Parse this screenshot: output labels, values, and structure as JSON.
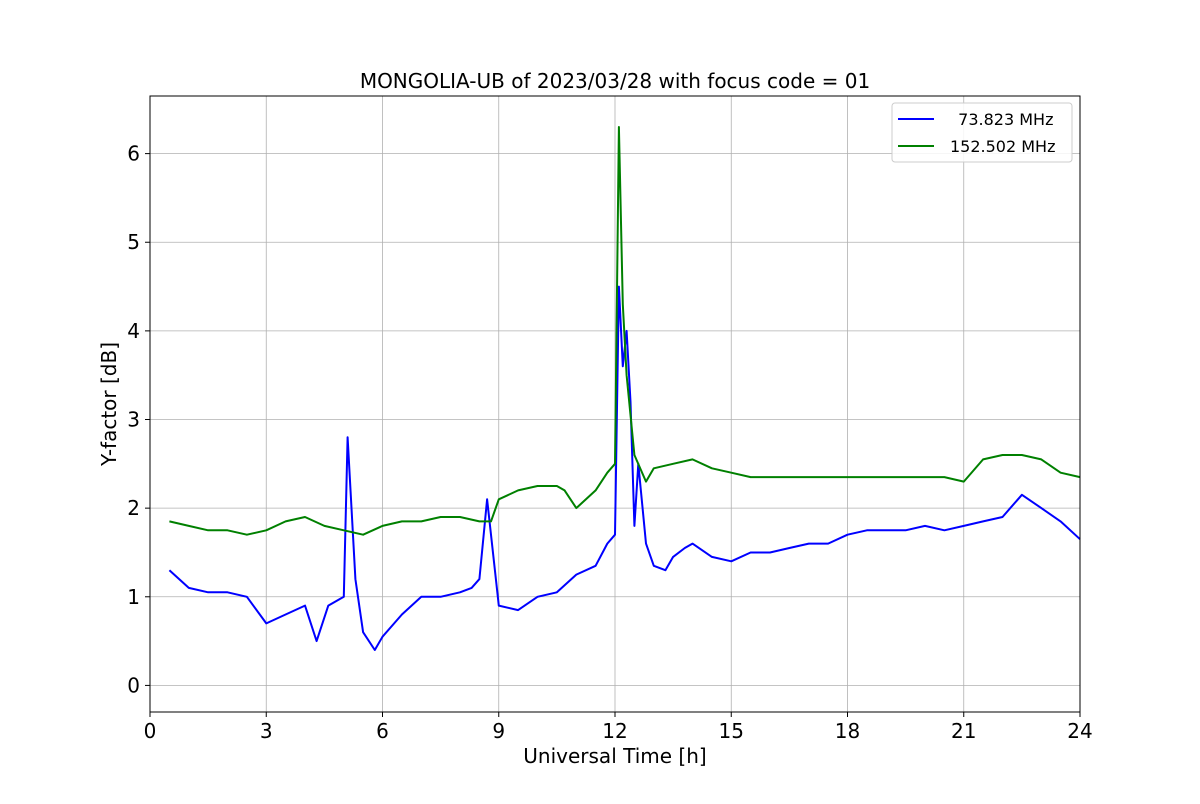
{
  "chart_data": {
    "type": "line",
    "title": "MONGOLIA-UB of 2023/03/28 with focus code = 01",
    "xlabel": "Universal Time [h]",
    "ylabel": "Y-factor [dB]",
    "xlim": [
      0,
      24
    ],
    "ylim": [
      -0.3,
      6.65
    ],
    "xticks": [
      0,
      3,
      6,
      9,
      12,
      15,
      18,
      21,
      24
    ],
    "yticks": [
      0,
      1,
      2,
      3,
      4,
      5,
      6
    ],
    "grid": true,
    "legend_position": "top-right",
    "series": [
      {
        "name": "  73.823 MHz",
        "color": "#0000ff",
        "x": [
          0.5,
          1.0,
          1.5,
          2.0,
          2.5,
          3.0,
          3.5,
          4.0,
          4.3,
          4.6,
          5.0,
          5.1,
          5.3,
          5.5,
          5.8,
          6.0,
          6.5,
          7.0,
          7.5,
          8.0,
          8.3,
          8.5,
          8.7,
          9.0,
          9.5,
          10.0,
          10.5,
          11.0,
          11.5,
          11.8,
          12.0,
          12.1,
          12.2,
          12.3,
          12.4,
          12.5,
          12.6,
          12.8,
          13.0,
          13.3,
          13.5,
          13.8,
          14.0,
          14.5,
          15.0,
          15.5,
          16.0,
          16.5,
          17.0,
          17.5,
          18.0,
          18.5,
          19.0,
          19.5,
          20.0,
          20.5,
          21.0,
          21.5,
          22.0,
          22.5,
          23.0,
          23.5,
          24.0
        ],
        "values": [
          1.3,
          1.1,
          1.05,
          1.05,
          1.0,
          0.7,
          0.8,
          0.9,
          0.5,
          0.9,
          1.0,
          2.8,
          1.2,
          0.6,
          0.4,
          0.55,
          0.8,
          1.0,
          1.0,
          1.05,
          1.1,
          1.2,
          2.1,
          0.9,
          0.85,
          1.0,
          1.05,
          1.25,
          1.35,
          1.6,
          1.7,
          4.5,
          3.6,
          4.0,
          3.2,
          1.8,
          2.5,
          1.6,
          1.35,
          1.3,
          1.45,
          1.55,
          1.6,
          1.45,
          1.4,
          1.5,
          1.5,
          1.55,
          1.6,
          1.6,
          1.7,
          1.75,
          1.75,
          1.75,
          1.8,
          1.75,
          1.8,
          1.85,
          1.9,
          2.15,
          2.0,
          1.85,
          1.65
        ]
      },
      {
        "name": "152.502 MHz",
        "color": "#008000",
        "x": [
          0.5,
          1.0,
          1.5,
          2.0,
          2.5,
          3.0,
          3.5,
          4.0,
          4.5,
          5.0,
          5.5,
          6.0,
          6.5,
          7.0,
          7.5,
          8.0,
          8.5,
          8.8,
          9.0,
          9.5,
          10.0,
          10.5,
          10.7,
          11.0,
          11.5,
          11.8,
          12.0,
          12.1,
          12.2,
          12.3,
          12.5,
          12.8,
          13.0,
          13.5,
          14.0,
          14.5,
          15.0,
          15.5,
          16.0,
          16.5,
          17.0,
          17.5,
          18.0,
          18.5,
          19.0,
          19.5,
          20.0,
          20.5,
          21.0,
          21.5,
          22.0,
          22.5,
          23.0,
          23.5,
          24.0
        ],
        "values": [
          1.85,
          1.8,
          1.75,
          1.75,
          1.7,
          1.75,
          1.85,
          1.9,
          1.8,
          1.75,
          1.7,
          1.8,
          1.85,
          1.85,
          1.9,
          1.9,
          1.85,
          1.85,
          2.1,
          2.2,
          2.25,
          2.25,
          2.2,
          2.0,
          2.2,
          2.4,
          2.5,
          6.3,
          4.3,
          3.5,
          2.6,
          2.3,
          2.45,
          2.5,
          2.55,
          2.45,
          2.4,
          2.35,
          2.35,
          2.35,
          2.35,
          2.35,
          2.35,
          2.35,
          2.35,
          2.35,
          2.35,
          2.35,
          2.3,
          2.55,
          2.6,
          2.6,
          2.55,
          2.4,
          2.35
        ]
      }
    ]
  }
}
